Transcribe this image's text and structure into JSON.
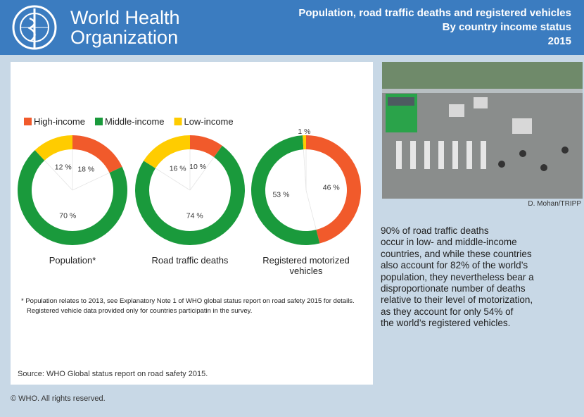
{
  "header": {
    "org_line1": "World Health",
    "org_line2": "Organization",
    "title_lines": [
      "Population, road traffic deaths and registered vehicles",
      "By country income status",
      "2015"
    ]
  },
  "legend": {
    "names": [
      "High-income",
      "Middle-income",
      "Low-income"
    ],
    "colors": [
      "#f15a2b",
      "#1a9a3c",
      "#ffcc00"
    ]
  },
  "chart_data": [
    {
      "type": "pie",
      "title": "Population*",
      "values": [
        18,
        70,
        12
      ],
      "value_labels": [
        "18 %",
        "70 %",
        "12 %"
      ]
    },
    {
      "type": "pie",
      "title": "Road traffic deaths",
      "values": [
        10,
        74,
        16
      ],
      "value_labels": [
        "10 %",
        "74 %",
        "16 %"
      ]
    },
    {
      "type": "pie",
      "title": "Registered motorized vehicles",
      "values": [
        46,
        53,
        1
      ],
      "value_labels": [
        "46 %",
        "53 %",
        "1 %"
      ]
    }
  ],
  "footnote": [
    "* Population relates to 2013, see Explanatory Note 1 of  WHO global status report on road safety 2015 for details.",
    "Registered vehicle data provided only for countries participatin in the survey."
  ],
  "source": "Source: WHO Global status report on road safety 2015.",
  "photo_credit": "D. Mohan/TRIPP",
  "paragraph": [
    "90% of road traffic deaths",
    "occur in low- and middle-income",
    "countries, and while these countries",
    "also account for 82% of the world’s",
    "population, they nevertheless bear a",
    "disproportionate number of deaths",
    "relative to their level of motorization,",
    "as they account for only 54% of",
    "the world’s registered vehicles."
  ],
  "copyright": "© WHO. All rights reserved."
}
